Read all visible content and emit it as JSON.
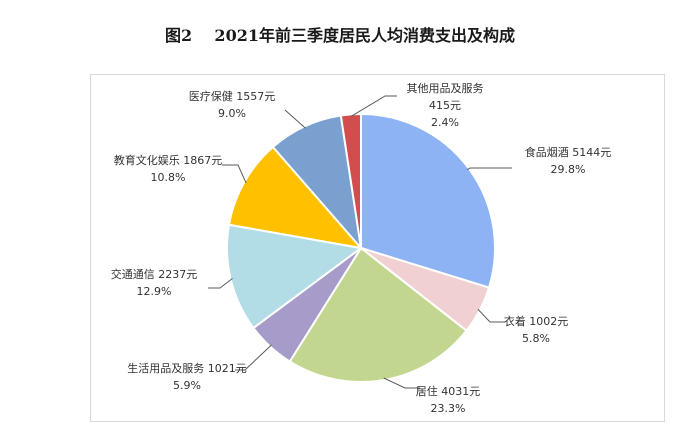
{
  "title": "图2    2021年前三季度居民人均消费支出及构成",
  "chart_data": {
    "type": "pie",
    "title": "图2    2021年前三季度居民人均消费支出及构成",
    "unit": "元",
    "slices": [
      {
        "name": "食品烟酒",
        "value": 5144,
        "value_label": "5144元",
        "percent": 29.8,
        "percent_label": "29.8%",
        "color": "#8db3f5"
      },
      {
        "name": "衣着",
        "value": 1002,
        "value_label": "1002元",
        "percent": 5.8,
        "percent_label": "5.8%",
        "color": "#f0d0d0"
      },
      {
        "name": "居住",
        "value": 4031,
        "value_label": "4031元",
        "percent": 23.3,
        "percent_label": "23.3%",
        "color": "#c2d690"
      },
      {
        "name": "生活用品及服务",
        "value": 1021,
        "value_label": "1021元",
        "percent": 5.9,
        "percent_label": "5.9%",
        "color": "#a79cc9"
      },
      {
        "name": "交通通信",
        "value": 2237,
        "value_label": "2237元",
        "percent": 12.9,
        "percent_label": "12.9%",
        "color": "#b2dce6"
      },
      {
        "name": "教育文化娱乐",
        "value": 1867,
        "value_label": "1867元",
        "percent": 10.8,
        "percent_label": "10.8%",
        "color": "#ffc000"
      },
      {
        "name": "医疗保健",
        "value": 1557,
        "value_label": "1557元",
        "percent": 9.0,
        "percent_label": "9.0%",
        "color": "#7aa0cf"
      },
      {
        "name": "其他用品及服务",
        "value": 415,
        "value_label": "415元",
        "percent": 2.4,
        "percent_label": "2.4%",
        "color": "#d24e4e"
      }
    ],
    "start": "12 o'clock",
    "direction": "clockwise",
    "labels": "outside with leader lines"
  }
}
